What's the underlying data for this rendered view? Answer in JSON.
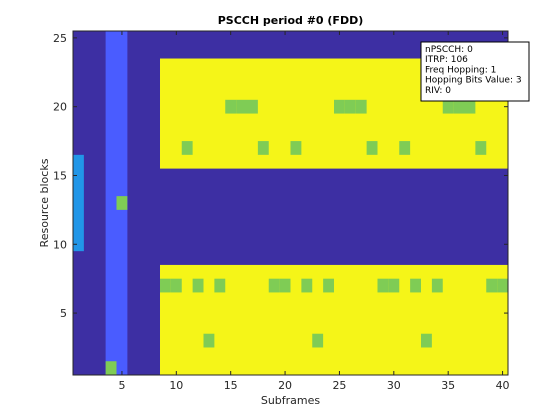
{
  "chart_data": {
    "type": "heatmap",
    "title": "PSCCH period #0 (FDD)",
    "xlabel": "Subframes",
    "ylabel": "Resource blocks",
    "xlim": [
      0.5,
      40.5
    ],
    "ylim": [
      0.5,
      25.5
    ],
    "xticks": [
      5,
      10,
      15,
      20,
      25,
      30,
      35,
      40
    ],
    "yticks": [
      5,
      10,
      15,
      20,
      25
    ],
    "grid": false,
    "colors": {
      "background": "#3d2fa3",
      "pscch_pool": "#4a5cff",
      "pssch_pool": "#f5f518",
      "left_column": "#2196e8",
      "allocated": "#7fcc55"
    },
    "regions": [
      {
        "kind": "background",
        "x": [
          1,
          40
        ],
        "y": [
          1,
          25
        ]
      },
      {
        "kind": "left_column",
        "x": [
          1,
          1
        ],
        "y": [
          10,
          16
        ]
      },
      {
        "kind": "pscch_pool",
        "x": [
          4,
          5
        ],
        "y": [
          1,
          25
        ]
      },
      {
        "kind": "pssch_pool",
        "x": [
          9,
          40
        ],
        "y": [
          1,
          8
        ]
      },
      {
        "kind": "pssch_pool",
        "x": [
          9,
          40
        ],
        "y": [
          16,
          23
        ]
      },
      {
        "kind": "allocated",
        "x": [
          4,
          4
        ],
        "y": [
          1,
          1
        ]
      },
      {
        "kind": "allocated",
        "x": [
          5,
          5
        ],
        "y": [
          13,
          13
        ]
      }
    ],
    "allocated_cells": [
      [
        9,
        7
      ],
      [
        10,
        7
      ],
      [
        12,
        7
      ],
      [
        14,
        7
      ],
      [
        19,
        7
      ],
      [
        20,
        7
      ],
      [
        22,
        7
      ],
      [
        24,
        7
      ],
      [
        29,
        7
      ],
      [
        30,
        7
      ],
      [
        32,
        7
      ],
      [
        34,
        7
      ],
      [
        39,
        7
      ],
      [
        40,
        7
      ],
      [
        13,
        3
      ],
      [
        23,
        3
      ],
      [
        33,
        3
      ],
      [
        11,
        17
      ],
      [
        18,
        17
      ],
      [
        21,
        17
      ],
      [
        28,
        17
      ],
      [
        31,
        17
      ],
      [
        38,
        17
      ],
      [
        15,
        20
      ],
      [
        16,
        20
      ],
      [
        17,
        20
      ],
      [
        25,
        20
      ],
      [
        26,
        20
      ],
      [
        27,
        20
      ],
      [
        35,
        20
      ],
      [
        36,
        20
      ],
      [
        37,
        20
      ]
    ],
    "info_box": {
      "placement": "top-right",
      "lines": [
        "nPSCCH: 0",
        "ITRP: 106",
        "Freq Hopping: 1",
        "Hopping Bits Value: 3",
        "RIV: 0"
      ]
    }
  }
}
